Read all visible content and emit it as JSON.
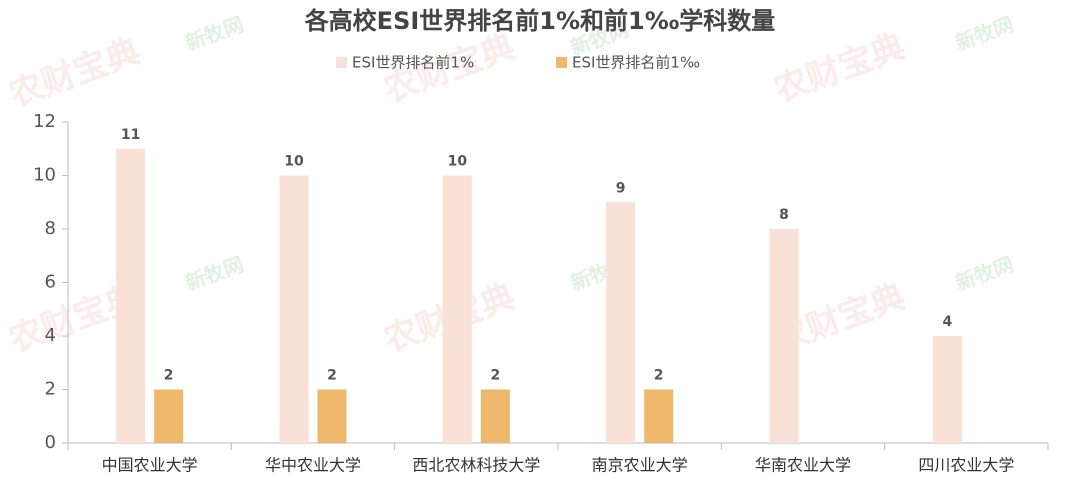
{
  "chart_data": {
    "type": "bar",
    "title": "各高校ESI世界排名前1%和前1‰学科数量",
    "categories": [
      "中国农业大学",
      "华中农业大学",
      "西北农林科技大学",
      "南京农业大学",
      "华南农业大学",
      "四川农业大学"
    ],
    "series": [
      {
        "name": "ESI世界排名前1%",
        "color": "#f9e1d8",
        "values": [
          11,
          10,
          10,
          9,
          8,
          4
        ]
      },
      {
        "name": "ESI世界排名前1‰",
        "color": "#eeb86c",
        "values": [
          2,
          2,
          2,
          2,
          null,
          null
        ]
      }
    ],
    "ylim": [
      0,
      12
    ],
    "yticks": [
      0,
      2,
      4,
      6,
      8,
      10,
      12
    ],
    "grid": false,
    "legend": "top",
    "watermarks": [
      "农财宝典",
      "新牧网"
    ]
  }
}
